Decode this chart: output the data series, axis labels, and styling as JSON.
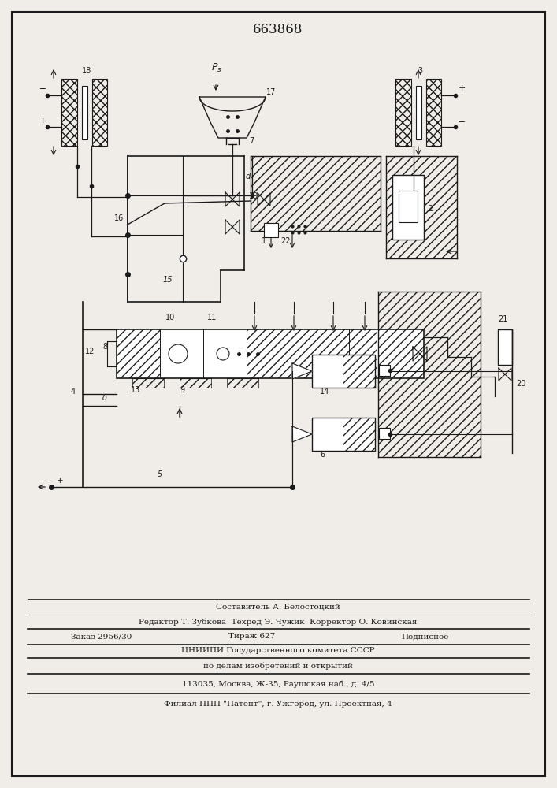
{
  "title_number": "663868",
  "background_color": "#f0ede8",
  "line_color": "#1a1a1a",
  "footer_lines": [
    "Составитель А. Белостоцкий",
    "Редактор Т. Зубкова  Техред Э. Чужик  Корректор О. Ковинская",
    "Заказ 2956/30        Тираж 627        Подписное",
    "ЦНИИПИ Государственного комитета СССР",
    "по делам изобретений и открытий",
    "113035, Москва, Ж-35, Раушская наб., д. 4/5",
    "Филиал ППП \"Патент\", г. Ужгород, ул. Проектная, 4"
  ],
  "figsize": [
    7.07,
    10.0
  ],
  "dpi": 100
}
